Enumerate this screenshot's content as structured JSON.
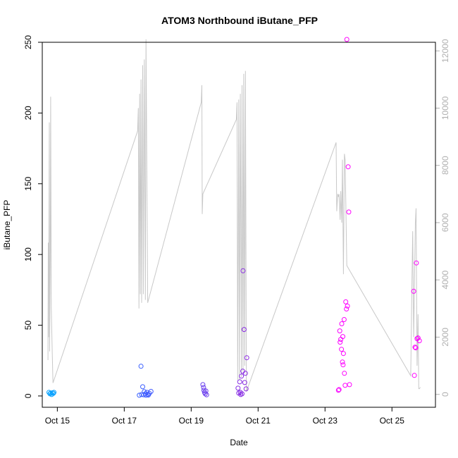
{
  "chart_data": {
    "type": "scatter",
    "title": "ATOM3 Northbound iButane_PFP",
    "xlabel": "Date",
    "ylabel": "iButane_PFP",
    "x_ticks": [
      "Oct 15",
      "Oct 17",
      "Oct 19",
      "Oct 21",
      "Oct 23",
      "Oct 25"
    ],
    "x_tick_days": [
      15,
      17,
      19,
      21,
      23,
      25
    ],
    "xlim": [
      14.55,
      26.3
    ],
    "ylim": [
      -8,
      250
    ],
    "y_ticks": [
      0,
      50,
      100,
      150,
      200,
      250
    ],
    "y2lim": [
      -450,
      12300
    ],
    "y2_ticks": [
      0,
      2000,
      4000,
      6000,
      8000,
      10000,
      12000
    ],
    "grid": false,
    "colors": {
      "point_start": "#00aaff",
      "point_mid": "#3b5cff",
      "point_purple": "#8a2be2",
      "point_end": "#ff00ff",
      "secondary_line": "#c8c8c8"
    },
    "series": [
      {
        "marker": "open-circle",
        "points": [
          [
            14.75,
            2.5
          ],
          [
            14.78,
            1.5
          ],
          [
            14.8,
            2.0
          ],
          [
            14.83,
            1.0
          ],
          [
            14.85,
            2.2
          ],
          [
            14.88,
            1.8
          ],
          [
            14.9,
            2.5
          ],
          [
            17.45,
            0.5
          ],
          [
            17.5,
            21.0
          ],
          [
            17.52,
            1.0
          ],
          [
            17.55,
            6.5
          ],
          [
            17.58,
            0.8
          ],
          [
            17.6,
            3.0
          ],
          [
            17.63,
            1.5
          ],
          [
            17.65,
            0.5
          ],
          [
            17.68,
            2.5
          ],
          [
            17.7,
            1.0
          ],
          [
            17.72,
            0.6
          ],
          [
            17.75,
            1.8
          ],
          [
            17.8,
            3.2
          ],
          [
            19.35,
            8.0
          ],
          [
            19.37,
            6.0
          ],
          [
            19.38,
            4.0
          ],
          [
            19.4,
            2.5
          ],
          [
            19.42,
            1.5
          ],
          [
            19.44,
            3.5
          ],
          [
            19.46,
            0.8
          ],
          [
            20.4,
            5.5
          ],
          [
            20.42,
            2.0
          ],
          [
            20.45,
            10.0
          ],
          [
            20.47,
            2.5
          ],
          [
            20.5,
            14.0
          ],
          [
            20.52,
            1.5
          ],
          [
            20.54,
            17.5
          ],
          [
            20.55,
            88.5
          ],
          [
            20.58,
            47.0
          ],
          [
            20.6,
            9.5
          ],
          [
            20.62,
            16.0
          ],
          [
            20.64,
            5.0
          ],
          [
            20.66,
            27.0
          ],
          [
            20.48,
            1.0
          ],
          [
            23.4,
            4.0
          ],
          [
            23.42,
            4.5
          ],
          [
            23.44,
            46.0
          ],
          [
            23.45,
            38.0
          ],
          [
            23.47,
            40.0
          ],
          [
            23.49,
            33.0
          ],
          [
            23.5,
            51.0
          ],
          [
            23.52,
            24.0
          ],
          [
            23.53,
            42.0
          ],
          [
            23.54,
            22.0
          ],
          [
            23.55,
            30.0
          ],
          [
            23.57,
            54.0
          ],
          [
            23.58,
            16.0
          ],
          [
            23.6,
            7.5
          ],
          [
            23.62,
            66.5
          ],
          [
            23.64,
            61.5
          ],
          [
            23.65,
            252.0
          ],
          [
            23.67,
            63.5
          ],
          [
            23.69,
            162.0
          ],
          [
            23.71,
            130.0
          ],
          [
            23.73,
            8.0
          ],
          [
            25.65,
            74.0
          ],
          [
            25.67,
            14.5
          ],
          [
            25.69,
            34.5
          ],
          [
            25.71,
            34.0
          ],
          [
            25.73,
            94.0
          ],
          [
            25.75,
            40.5
          ],
          [
            25.78,
            41.0
          ],
          [
            25.82,
            39.0
          ]
        ]
      }
    ],
    "secondary_series": {
      "axis": "right",
      "style": "line",
      "points": [
        [
          14.72,
          1200
        ],
        [
          14.73,
          5300
        ],
        [
          14.74,
          2000
        ],
        [
          14.76,
          9500
        ],
        [
          14.77,
          1500
        ],
        [
          14.79,
          5000
        ],
        [
          14.8,
          10400
        ],
        [
          14.82,
          3000
        ],
        [
          14.85,
          1400
        ],
        [
          14.87,
          400
        ],
        [
          17.4,
          9200
        ],
        [
          17.42,
          10000
        ],
        [
          17.44,
          3000
        ],
        [
          17.46,
          10500
        ],
        [
          17.48,
          3500
        ],
        [
          17.5,
          11000
        ],
        [
          17.52,
          3200
        ],
        [
          17.55,
          11500
        ],
        [
          17.57,
          3500
        ],
        [
          17.6,
          11700
        ],
        [
          17.63,
          3300
        ],
        [
          17.65,
          12400
        ],
        [
          17.7,
          3200
        ],
        [
          19.3,
          10200
        ],
        [
          19.32,
          10800
        ],
        [
          19.33,
          6300
        ],
        [
          19.35,
          7000
        ],
        [
          20.35,
          9600
        ],
        [
          20.37,
          10200
        ],
        [
          20.39,
          500
        ],
        [
          20.42,
          10300
        ],
        [
          20.44,
          500
        ],
        [
          20.47,
          10500
        ],
        [
          20.5,
          600
        ],
        [
          20.52,
          10800
        ],
        [
          20.55,
          800
        ],
        [
          20.57,
          11200
        ],
        [
          20.6,
          1000
        ],
        [
          20.62,
          11300
        ],
        [
          20.65,
          100
        ],
        [
          23.33,
          8800
        ],
        [
          23.35,
          6400
        ],
        [
          23.38,
          7000
        ],
        [
          23.4,
          6900
        ],
        [
          23.42,
          7000
        ],
        [
          23.45,
          6100
        ],
        [
          23.47,
          7100
        ],
        [
          23.5,
          6000
        ],
        [
          23.52,
          8200
        ],
        [
          23.55,
          4200
        ],
        [
          23.58,
          8400
        ],
        [
          23.6,
          8200
        ],
        [
          23.65,
          4500
        ],
        [
          25.56,
          650
        ],
        [
          25.6,
          4200
        ],
        [
          25.62,
          5700
        ],
        [
          25.65,
          2000
        ],
        [
          25.7,
          6000
        ],
        [
          25.72,
          6500
        ],
        [
          25.75,
          1000
        ],
        [
          25.78,
          2800
        ],
        [
          25.8,
          200
        ],
        [
          25.82,
          200
        ],
        [
          25.85,
          250
        ]
      ]
    }
  }
}
